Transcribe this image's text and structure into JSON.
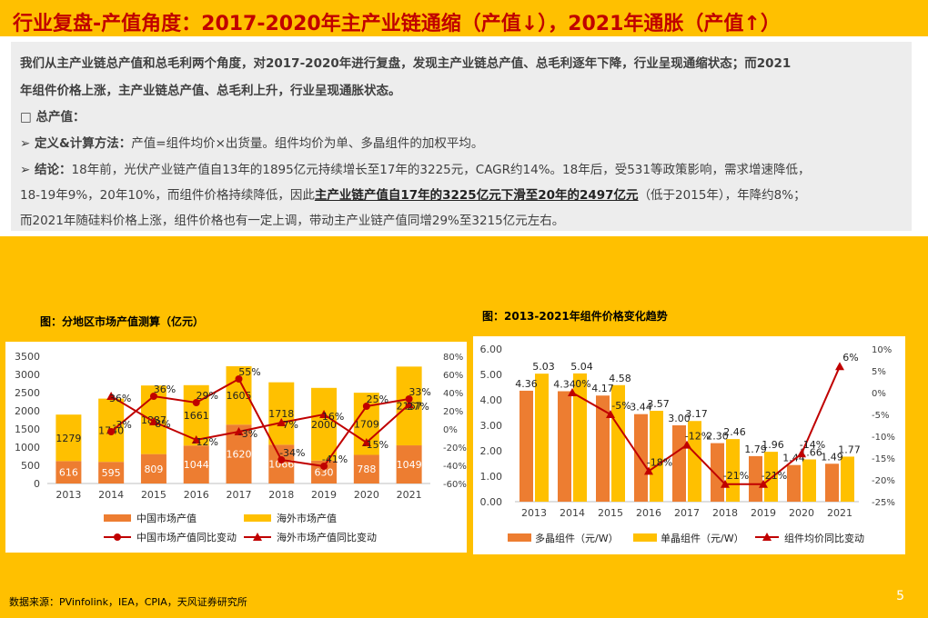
{
  "page": {
    "title": "行业复盘-产值角度：2017-2020年主产业链通缩（产值↓），2021年通胀（产值↑）",
    "intro_line1": "我们从主产业链总产值和总毛利两个角度，对2017-2020年进行复盘，发现主产业链总产值、总毛利逐年下降，行业呈现通缩状态；而2021",
    "intro_line2": "年组件价格上涨，主产业链总产值、总毛利上升，行业呈现通胀状态。",
    "bullet_head": "□ 总产值：",
    "def_label": "➢ 定义&计算方法：",
    "def_text": "产值=组件均价×出货量。组件均价为单、多晶组件的加权平均。",
    "concl_label": "➢ 结论：",
    "concl_line1": "18年前，光伏产业链产值自13年的1895亿元持续增长至17年的3225元，CAGR约14%。18年后，受531等政策影响，需求增速降低，",
    "concl_line2a": "18-19年9%，20年10%，而组件价格持续降低，因此",
    "concl_line2b": "主产业链产值自17年的3225亿元下滑至20年的2497亿元",
    "concl_line2c": "（低于2015年），年降约8%；",
    "concl_line3": "而2021年随硅料价格上涨，组件价格也有一定上调，带动主产业链产值同增29%至3215亿元左右。",
    "footer": "数据来源：PVinfolink，IEA，CPIA，天风证券研究所",
    "page_number": "5"
  },
  "chart_data": [
    {
      "type": "bar",
      "title": "图：分地区市场产值测算（亿元）",
      "stacked": true,
      "categories": [
        "2013",
        "2014",
        "2015",
        "2016",
        "2017",
        "2018",
        "2019",
        "2020",
        "2021"
      ],
      "series": [
        {
          "name": "中国市场产值",
          "values": [
            616,
            595,
            809,
            1044,
            1620,
            1066,
            630,
            788,
            1049
          ],
          "color": "#ED7D31"
        },
        {
          "name": "海外市场产值",
          "values": [
            1279,
            1740,
            1887,
            1661,
            1605,
            1718,
            2000,
            1709,
            2167
          ],
          "color": "#FFC000"
        }
      ],
      "line_series": [
        {
          "name": "中国市场产值同比变动",
          "values": [
            null,
            -3,
            36,
            29,
            55,
            -34,
            -41,
            25,
            33
          ],
          "labels": [
            "",
            "-3%",
            "36%",
            "29%",
            "55%",
            "-34%",
            "-41%",
            "25%",
            "33%"
          ],
          "color": "#C00000",
          "marker": "circle"
        },
        {
          "name": "海外市场产值同比变动",
          "values": [
            null,
            36,
            8,
            -12,
            -3,
            7,
            16,
            -15,
            27
          ],
          "labels": [
            "",
            "36%",
            "8%",
            "-12%",
            "-3%",
            "7%",
            "16%",
            "-15%",
            "27%"
          ],
          "color": "#C00000",
          "marker": "triangle"
        }
      ],
      "ylim": [
        0,
        3500
      ],
      "yticks": [
        0,
        500,
        1000,
        1500,
        2000,
        2500,
        3000,
        3500
      ],
      "y2lim": [
        -60,
        80
      ],
      "y2ticks": [
        "80%",
        "60%",
        "40%",
        "20%",
        "0%",
        "-20%",
        "-40%",
        "-60%"
      ],
      "legend": "bottom"
    },
    {
      "type": "bar",
      "title": "图：2013-2021年组件价格变化趋势",
      "categories": [
        "2013",
        "2014",
        "2015",
        "2016",
        "2017",
        "2018",
        "2019",
        "2020",
        "2021"
      ],
      "series": [
        {
          "name": "多晶组件（元/W）",
          "values": [
            4.36,
            4.34,
            4.17,
            3.44,
            3.0,
            2.3,
            1.79,
            1.44,
            1.49
          ],
          "labels": [
            "4.36",
            "4.34",
            "4.17",
            "3.44",
            "3.00",
            "2.30",
            "1.79",
            "1.44",
            "1.49"
          ],
          "color": "#ED7D31"
        },
        {
          "name": "单晶组件（元/W）",
          "values": [
            5.03,
            5.04,
            4.58,
            3.57,
            3.17,
            2.46,
            1.96,
            1.66,
            1.77
          ],
          "labels": [
            "5.03",
            "5.04",
            "4.58",
            "3.57",
            "3.17",
            "2.46",
            "1.96",
            "1.66",
            "1.77"
          ],
          "color": "#FFC000"
        }
      ],
      "line_series": [
        {
          "name": "组件均价同比变动",
          "values": [
            null,
            0,
            -5,
            -18,
            -12,
            -21,
            -21,
            -14,
            6
          ],
          "labels": [
            "",
            "0%",
            "-5%",
            "-18%",
            "-12%",
            "-21%",
            "-21%",
            "-14%",
            "6%"
          ],
          "color": "#C00000",
          "marker": "triangle"
        }
      ],
      "ylim": [
        0,
        6
      ],
      "yticks": [
        "0.00",
        "1.00",
        "2.00",
        "3.00",
        "4.00",
        "5.00",
        "6.00"
      ],
      "y2lim": [
        -25,
        10
      ],
      "y2ticks": [
        "10%",
        "5%",
        "0%",
        "-5%",
        "-10%",
        "-15%",
        "-20%",
        "-25%"
      ],
      "legend": "bottom"
    }
  ]
}
